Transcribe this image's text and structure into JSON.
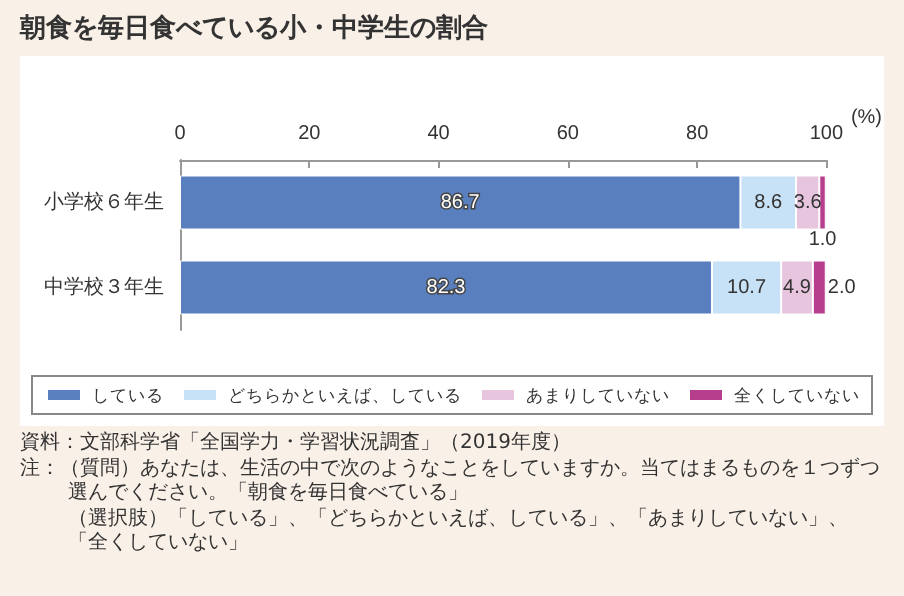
{
  "chart_data": {
    "type": "bar",
    "orientation": "horizontal",
    "stacked": true,
    "title": "朝食を毎日食べている小・中学生の割合",
    "xlabel": "(%)",
    "categories": [
      "小学校６年生",
      "中学校３年生"
    ],
    "series": [
      {
        "name": "している",
        "color": "#5a7fbf",
        "values": [
          86.7,
          82.3
        ]
      },
      {
        "name": "どちらかといえば、している",
        "color": "#c7e1f6",
        "values": [
          8.6,
          10.7
        ]
      },
      {
        "name": "あまりしていない",
        "color": "#e8c5de",
        "values": [
          3.6,
          4.9
        ]
      },
      {
        "name": "全くしていない",
        "color": "#b63e8c",
        "values": [
          1.0,
          2.0
        ],
        "value_labels": [
          "1.0",
          "2.0"
        ]
      }
    ],
    "xlim": [
      0,
      100
    ],
    "xticks": [
      0,
      20,
      40,
      60,
      80,
      100
    ],
    "grid": false,
    "legend": "bottom",
    "data_labels": true,
    "annotations": [
      "資料：文部科学省「全国学力・学習状況調査」（2019年度）",
      "注：（質問）あなたは、生活の中で次のようなことをしていますか。当てはまるものを１つずつ選んでください。「朝食を毎日食べている」",
      "（選択肢）「している」、「どちらかといえば、している」、「あまりしていない」、「全くしていない」"
    ]
  }
}
